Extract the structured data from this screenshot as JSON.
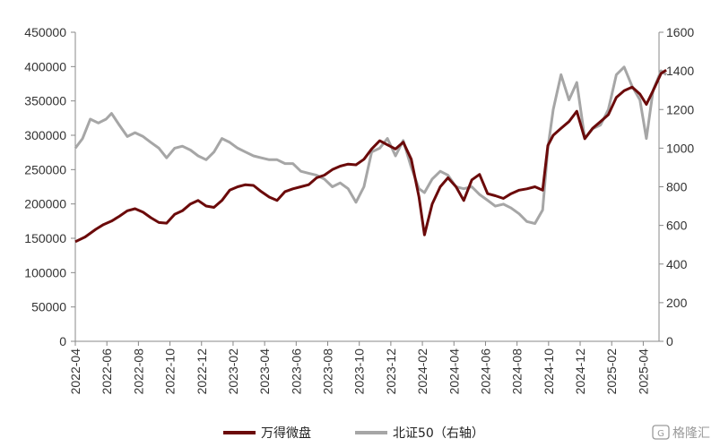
{
  "chart_data": {
    "type": "line",
    "title": "",
    "xlabel": "",
    "ylabel": "",
    "y2label": "",
    "x_tick_labels": [
      "2022-04",
      "2022-06",
      "2022-08",
      "2022-10",
      "2022-12",
      "2023-02",
      "2023-04",
      "2023-06",
      "2023-08",
      "2023-10",
      "2023-12",
      "2024-02",
      "2024-04",
      "2024-06",
      "2024-08",
      "2024-10",
      "2024-12",
      "2025-02",
      "2025-04"
    ],
    "y_left_ticks": [
      "0",
      "50000",
      "100000",
      "150000",
      "200000",
      "250000",
      "300000",
      "350000",
      "400000",
      "450000"
    ],
    "y_right_ticks": [
      "0",
      "200",
      "400",
      "600",
      "800",
      "1000",
      "1200",
      "1400",
      "1600"
    ],
    "ylim_left": [
      0,
      450000
    ],
    "ylim_right": [
      0,
      1600
    ],
    "xlim": [
      "2022-04",
      "2025-05"
    ],
    "grid": false,
    "legend_position": "bottom",
    "series": [
      {
        "name": "万得微盘",
        "axis": "left",
        "color": "#6b0a0a",
        "points": [
          [
            "2022-04-01",
            145000
          ],
          [
            "2022-04-20",
            152000
          ],
          [
            "2022-05-10",
            163000
          ],
          [
            "2022-05-25",
            170000
          ],
          [
            "2022-06-10",
            175000
          ],
          [
            "2022-06-25",
            182000
          ],
          [
            "2022-07-10",
            190000
          ],
          [
            "2022-07-25",
            193000
          ],
          [
            "2022-08-10",
            188000
          ],
          [
            "2022-08-25",
            180000
          ],
          [
            "2022-09-10",
            173000
          ],
          [
            "2022-09-25",
            172000
          ],
          [
            "2022-10-10",
            185000
          ],
          [
            "2022-10-25",
            190000
          ],
          [
            "2022-11-10",
            200000
          ],
          [
            "2022-11-25",
            205000
          ],
          [
            "2022-12-10",
            197000
          ],
          [
            "2022-12-25",
            195000
          ],
          [
            "2023-01-10",
            205000
          ],
          [
            "2023-01-25",
            220000
          ],
          [
            "2023-02-10",
            225000
          ],
          [
            "2023-02-25",
            228000
          ],
          [
            "2023-03-10",
            227000
          ],
          [
            "2023-03-25",
            218000
          ],
          [
            "2023-04-10",
            210000
          ],
          [
            "2023-04-25",
            205000
          ],
          [
            "2023-05-10",
            218000
          ],
          [
            "2023-05-25",
            222000
          ],
          [
            "2023-06-10",
            225000
          ],
          [
            "2023-06-25",
            228000
          ],
          [
            "2023-07-10",
            238000
          ],
          [
            "2023-07-25",
            242000
          ],
          [
            "2023-08-10",
            250000
          ],
          [
            "2023-08-25",
            255000
          ],
          [
            "2023-09-10",
            258000
          ],
          [
            "2023-09-25",
            257000
          ],
          [
            "2023-10-10",
            265000
          ],
          [
            "2023-10-25",
            280000
          ],
          [
            "2023-11-10",
            292000
          ],
          [
            "2023-11-25",
            286000
          ],
          [
            "2023-12-10",
            280000
          ],
          [
            "2023-12-25",
            290000
          ],
          [
            "2024-01-10",
            265000
          ],
          [
            "2024-01-25",
            210000
          ],
          [
            "2024-02-05",
            155000
          ],
          [
            "2024-02-20",
            200000
          ],
          [
            "2024-03-05",
            225000
          ],
          [
            "2024-03-20",
            238000
          ],
          [
            "2024-04-05",
            225000
          ],
          [
            "2024-04-20",
            205000
          ],
          [
            "2024-05-05",
            235000
          ],
          [
            "2024-05-20",
            243000
          ],
          [
            "2024-06-05",
            215000
          ],
          [
            "2024-06-20",
            212000
          ],
          [
            "2024-07-05",
            208000
          ],
          [
            "2024-07-20",
            215000
          ],
          [
            "2024-08-05",
            220000
          ],
          [
            "2024-08-20",
            222000
          ],
          [
            "2024-09-05",
            225000
          ],
          [
            "2024-09-20",
            220000
          ],
          [
            "2024-09-30",
            285000
          ],
          [
            "2024-10-10",
            300000
          ],
          [
            "2024-10-25",
            310000
          ],
          [
            "2024-11-10",
            320000
          ],
          [
            "2024-11-25",
            335000
          ],
          [
            "2024-12-10",
            295000
          ],
          [
            "2024-12-25",
            310000
          ],
          [
            "2025-01-10",
            320000
          ],
          [
            "2025-01-25",
            330000
          ],
          [
            "2025-02-10",
            355000
          ],
          [
            "2025-02-25",
            365000
          ],
          [
            "2025-03-10",
            370000
          ],
          [
            "2025-03-25",
            360000
          ],
          [
            "2025-04-07",
            345000
          ],
          [
            "2025-04-20",
            365000
          ],
          [
            "2025-05-05",
            390000
          ],
          [
            "2025-05-15",
            395000
          ]
        ]
      },
      {
        "name": "北证50（右轴）",
        "axis": "right",
        "color": "#a6a6a6",
        "points": [
          [
            "2022-04-01",
            1000
          ],
          [
            "2022-04-15",
            1050
          ],
          [
            "2022-04-30",
            1150
          ],
          [
            "2022-05-15",
            1130
          ],
          [
            "2022-05-30",
            1150
          ],
          [
            "2022-06-10",
            1180
          ],
          [
            "2022-06-25",
            1120
          ],
          [
            "2022-07-10",
            1060
          ],
          [
            "2022-07-25",
            1080
          ],
          [
            "2022-08-10",
            1060
          ],
          [
            "2022-08-25",
            1030
          ],
          [
            "2022-09-10",
            1000
          ],
          [
            "2022-09-25",
            950
          ],
          [
            "2022-10-10",
            1000
          ],
          [
            "2022-10-25",
            1010
          ],
          [
            "2022-11-10",
            990
          ],
          [
            "2022-11-25",
            960
          ],
          [
            "2022-12-10",
            940
          ],
          [
            "2022-12-25",
            980
          ],
          [
            "2023-01-10",
            1050
          ],
          [
            "2023-01-25",
            1030
          ],
          [
            "2023-02-10",
            1000
          ],
          [
            "2023-02-25",
            980
          ],
          [
            "2023-03-10",
            960
          ],
          [
            "2023-03-25",
            950
          ],
          [
            "2023-04-10",
            940
          ],
          [
            "2023-04-25",
            940
          ],
          [
            "2023-05-10",
            920
          ],
          [
            "2023-05-25",
            920
          ],
          [
            "2023-06-10",
            880
          ],
          [
            "2023-06-25",
            870
          ],
          [
            "2023-07-10",
            860
          ],
          [
            "2023-07-25",
            840
          ],
          [
            "2023-08-10",
            800
          ],
          [
            "2023-08-25",
            820
          ],
          [
            "2023-09-10",
            790
          ],
          [
            "2023-09-25",
            720
          ],
          [
            "2023-10-10",
            800
          ],
          [
            "2023-10-25",
            980
          ],
          [
            "2023-11-10",
            1000
          ],
          [
            "2023-11-25",
            1050
          ],
          [
            "2023-12-10",
            960
          ],
          [
            "2023-12-25",
            1040
          ],
          [
            "2024-01-10",
            900
          ],
          [
            "2024-01-25",
            790
          ],
          [
            "2024-02-05",
            770
          ],
          [
            "2024-02-20",
            840
          ],
          [
            "2024-03-05",
            880
          ],
          [
            "2024-03-20",
            860
          ],
          [
            "2024-04-05",
            800
          ],
          [
            "2024-04-20",
            790
          ],
          [
            "2024-05-05",
            800
          ],
          [
            "2024-05-20",
            760
          ],
          [
            "2024-06-05",
            730
          ],
          [
            "2024-06-20",
            700
          ],
          [
            "2024-07-05",
            710
          ],
          [
            "2024-07-20",
            690
          ],
          [
            "2024-08-05",
            660
          ],
          [
            "2024-08-20",
            620
          ],
          [
            "2024-09-05",
            610
          ],
          [
            "2024-09-20",
            680
          ],
          [
            "2024-09-30",
            1000
          ],
          [
            "2024-10-10",
            1200
          ],
          [
            "2024-10-25",
            1380
          ],
          [
            "2024-11-10",
            1250
          ],
          [
            "2024-11-25",
            1340
          ],
          [
            "2024-12-10",
            1050
          ],
          [
            "2024-12-25",
            1100
          ],
          [
            "2025-01-10",
            1120
          ],
          [
            "2025-01-25",
            1200
          ],
          [
            "2025-02-10",
            1380
          ],
          [
            "2025-02-25",
            1420
          ],
          [
            "2025-03-10",
            1320
          ],
          [
            "2025-03-25",
            1250
          ],
          [
            "2025-04-07",
            1050
          ],
          [
            "2025-04-20",
            1300
          ],
          [
            "2025-05-05",
            1400
          ],
          [
            "2025-05-15",
            1380
          ]
        ]
      }
    ]
  },
  "watermark": {
    "text": "格隆汇"
  }
}
